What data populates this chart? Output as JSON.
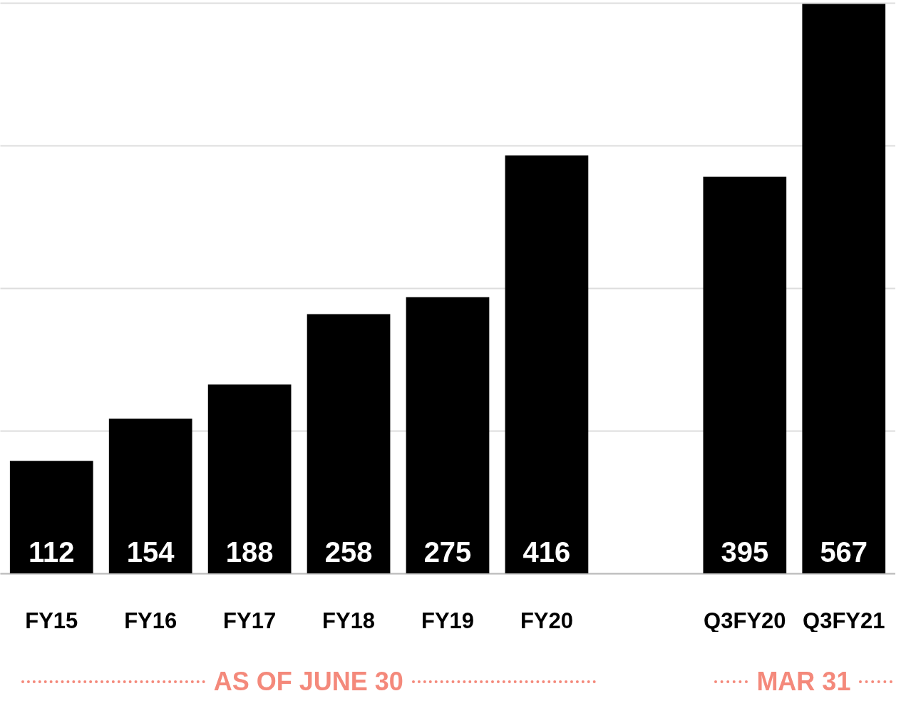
{
  "chart_data": {
    "type": "bar",
    "categories": [
      "FY15",
      "FY16",
      "FY17",
      "FY18",
      "FY19",
      "FY20",
      null,
      "Q3FY20",
      "Q3FY21"
    ],
    "values": [
      112,
      154,
      188,
      258,
      275,
      416,
      null,
      395,
      567
    ],
    "color": "#000000",
    "data_labels": true,
    "ylim": [
      0,
      568
    ],
    "yticks": [
      {
        "value": 0,
        "label": null
      },
      {
        "value": 142,
        "label": null
      },
      {
        "value": 284,
        "label": null
      },
      {
        "value": 426,
        "label": null
      },
      {
        "value": 568,
        "label": null
      }
    ],
    "grid": "y",
    "tick_labels": "x",
    "annotations": [
      "AS OF JUNE 30",
      "MAR 31"
    ]
  }
}
